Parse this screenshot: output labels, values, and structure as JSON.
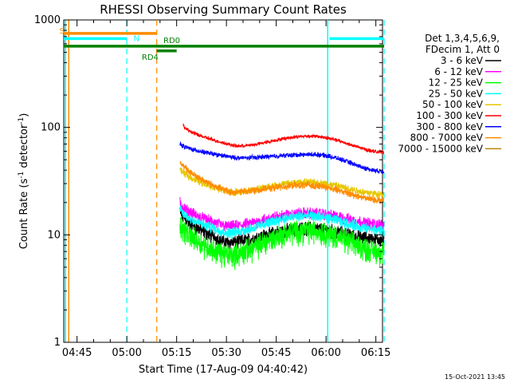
{
  "chart_data": {
    "type": "line",
    "title": "RHESSI Observing Summary Count Rates",
    "xlabel": "Start Time (17-Aug-09 04:40:42)",
    "ylabel_main": "Count Rate (s",
    "ylabel_sup1": "-1",
    "ylabel_mid": " detector",
    "ylabel_sup2": "-1",
    "ylabel_end": ")",
    "ylim": [
      1,
      1000
    ],
    "yscale": "log",
    "xlim_min": [
      281,
      377
    ],
    "yticks": [
      {
        "value": 1,
        "label": "1"
      },
      {
        "value": 10,
        "label": "10"
      },
      {
        "value": 100,
        "label": "100"
      },
      {
        "value": 1000,
        "label": "1000"
      }
    ],
    "xticks": [
      {
        "min": 285,
        "label": "04:45"
      },
      {
        "min": 300,
        "label": "05:00"
      },
      {
        "min": 315,
        "label": "05:15"
      },
      {
        "min": 330,
        "label": "05:30"
      },
      {
        "min": 345,
        "label": "05:45"
      },
      {
        "min": 360,
        "label": "06:00"
      },
      {
        "min": 375,
        "label": "06:15"
      }
    ],
    "legend": {
      "placement": "right",
      "header_line1": "Det 1,3,4,5,6,9,",
      "header_line2": "FDecim 1, Att 0",
      "entries": [
        {
          "label": "3 - 6 keV",
          "color": "#000000"
        },
        {
          "label": "6 - 12 keV",
          "color": "#ff00ff"
        },
        {
          "label": "12 - 25 keV",
          "color": "#00ff00"
        },
        {
          "label": "25 - 50 keV",
          "color": "#00ffff"
        },
        {
          "label": "50 - 100 keV",
          "color": "#e6c800"
        },
        {
          "label": "100 - 300 keV",
          "color": "#ff0000"
        },
        {
          "label": "300 - 800 keV",
          "color": "#0000ff"
        },
        {
          "label": "800 - 7000 keV",
          "color": "#ff8c00"
        },
        {
          "label": "7000 - 15000 keV",
          "color": "#b8860b"
        }
      ]
    },
    "series": [
      {
        "color": "#000000",
        "start": 316,
        "end": 377.5,
        "v0": 17,
        "vmin": 8.5,
        "tmin": 330,
        "vpk": 11.5,
        "tpk": 354,
        "vend": 9,
        "noise": 0.12
      },
      {
        "color": "#ff00ff",
        "start": 316,
        "end": 377.5,
        "v0": 20,
        "vmin": 12,
        "tmin": 330,
        "vpk": 16,
        "tpk": 354,
        "vend": 12.5,
        "noise": 0.1
      },
      {
        "color": "#00ff00",
        "start": 316,
        "end": 377.5,
        "v0": 13,
        "vmin": 6.5,
        "tmin": 330,
        "vpk": 11,
        "tpk": 354,
        "vend": 7,
        "noise": 0.2
      },
      {
        "color": "#00ffff",
        "start": 316,
        "end": 377.5,
        "v0": 17.5,
        "vmin": 10.5,
        "tmin": 330,
        "vpk": 15,
        "tpk": 354,
        "vend": 11,
        "noise": 0.09
      },
      {
        "color": "#e6c800",
        "start": 316,
        "end": 377.5,
        "v0": 42,
        "vmin": 25,
        "tmin": 331,
        "vpk": 31,
        "tpk": 354,
        "vend": 24,
        "noise": 0.06
      },
      {
        "color": "#ff0000",
        "start": 317,
        "end": 377.5,
        "v0": 105,
        "vmin": 67,
        "tmin": 333,
        "vpk": 83,
        "tpk": 355,
        "vend": 59,
        "noise": 0.03
      },
      {
        "color": "#0000ff",
        "start": 316,
        "end": 377.5,
        "v0": 71,
        "vmin": 52,
        "tmin": 333,
        "vpk": 56,
        "tpk": 356,
        "vend": 39,
        "noise": 0.04
      },
      {
        "color": "#ff8c00",
        "start": 316,
        "end": 377.5,
        "v0": 50,
        "vmin": 25,
        "tmin": 331,
        "vpk": 29,
        "tpk": 354,
        "vend": 21,
        "noise": 0.06
      }
    ],
    "annotations": {
      "s_label": "S",
      "n_label": "N",
      "rd0_label": "RD0",
      "rd4_label": "RD4",
      "s_bar": {
        "start": 281,
        "end": 309,
        "value": 750,
        "color": "#ff8c00"
      },
      "n_bar_1": {
        "start": 281,
        "end": 300,
        "value": 670,
        "color": "#00ffff"
      },
      "n_bar_2": {
        "start": 361,
        "end": 377.5,
        "value": 670,
        "color": "#00ffff"
      },
      "rd0_bar": {
        "start": 281,
        "end": 377.5,
        "value": 570,
        "color": "#008000"
      },
      "rd4_bar": {
        "start": 309,
        "end": 315,
        "value": 515,
        "color": "#008000"
      },
      "cyan_solid_lines": [
        281.5,
        360.5
      ],
      "cyan_dashed_lines": [
        300,
        377.5
      ],
      "orange_solid_lines": [
        282.5
      ],
      "orange_dashed_lines": [
        309
      ]
    }
  },
  "footer": {
    "timestamp": "15-Oct-2021 13:45"
  }
}
